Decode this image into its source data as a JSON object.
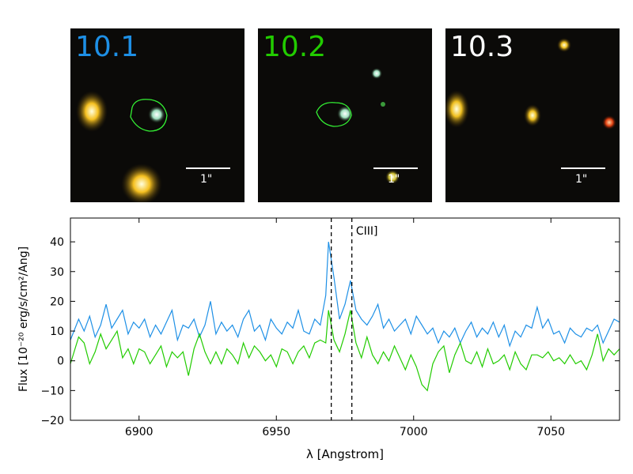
{
  "stamps": [
    {
      "label": "10.1",
      "label_color": "#1e90e6",
      "scale_text": "1\"",
      "has_contour": true
    },
    {
      "label": "10.2",
      "label_color": "#22cc00",
      "scale_text": "1\"",
      "has_contour": true
    },
    {
      "label": "10.3",
      "label_color": "#ffffff",
      "scale_text": "1\"",
      "has_contour": false
    }
  ],
  "chart_data": {
    "type": "line",
    "xlabel": "λ [Angstrom]",
    "ylabel": "Flux [10⁻²⁰ erg/s/cm²/Ang]",
    "xlim": [
      6875,
      7075
    ],
    "ylim": [
      -20,
      48
    ],
    "xticks": [
      6900,
      6950,
      7000,
      7050
    ],
    "yticks": [
      -20,
      -10,
      0,
      10,
      20,
      30,
      40
    ],
    "vlines": [
      6970,
      6977.5
    ],
    "annotation": {
      "text": "CIII]",
      "x": 6979,
      "y": 44
    },
    "colors": {
      "blue": "#1e90e6",
      "green": "#22cc00"
    },
    "series": [
      {
        "color": "#1e90e6",
        "points": [
          [
            6875,
            7
          ],
          [
            6878,
            14
          ],
          [
            6880,
            10
          ],
          [
            6882,
            15
          ],
          [
            6884,
            8
          ],
          [
            6886,
            12
          ],
          [
            6888,
            19
          ],
          [
            6890,
            11
          ],
          [
            6892,
            14
          ],
          [
            6894,
            17
          ],
          [
            6896,
            9
          ],
          [
            6898,
            13
          ],
          [
            6900,
            11
          ],
          [
            6902,
            14
          ],
          [
            6904,
            8
          ],
          [
            6906,
            12
          ],
          [
            6908,
            9
          ],
          [
            6910,
            13
          ],
          [
            6912,
            17
          ],
          [
            6914,
            7
          ],
          [
            6916,
            12
          ],
          [
            6918,
            11
          ],
          [
            6920,
            14
          ],
          [
            6922,
            8
          ],
          [
            6924,
            12
          ],
          [
            6926,
            20
          ],
          [
            6928,
            9
          ],
          [
            6930,
            13
          ],
          [
            6932,
            10
          ],
          [
            6934,
            12
          ],
          [
            6936,
            8
          ],
          [
            6938,
            14
          ],
          [
            6940,
            17
          ],
          [
            6942,
            10
          ],
          [
            6944,
            12
          ],
          [
            6946,
            7
          ],
          [
            6948,
            14
          ],
          [
            6950,
            11
          ],
          [
            6952,
            9
          ],
          [
            6954,
            13
          ],
          [
            6956,
            11
          ],
          [
            6958,
            17
          ],
          [
            6960,
            10
          ],
          [
            6962,
            9
          ],
          [
            6964,
            14
          ],
          [
            6966,
            12
          ],
          [
            6968,
            22
          ],
          [
            6969,
            40
          ],
          [
            6971,
            28
          ],
          [
            6973,
            14
          ],
          [
            6975,
            19
          ],
          [
            6977,
            27
          ],
          [
            6979,
            17
          ],
          [
            6981,
            14
          ],
          [
            6983,
            12
          ],
          [
            6985,
            15
          ],
          [
            6987,
            19
          ],
          [
            6989,
            11
          ],
          [
            6991,
            14
          ],
          [
            6993,
            10
          ],
          [
            6995,
            12
          ],
          [
            6997,
            14
          ],
          [
            6999,
            9
          ],
          [
            7001,
            15
          ],
          [
            7003,
            12
          ],
          [
            7005,
            9
          ],
          [
            7007,
            11
          ],
          [
            7009,
            6
          ],
          [
            7011,
            10
          ],
          [
            7013,
            8
          ],
          [
            7015,
            11
          ],
          [
            7017,
            6
          ],
          [
            7019,
            10
          ],
          [
            7021,
            13
          ],
          [
            7023,
            8
          ],
          [
            7025,
            11
          ],
          [
            7027,
            9
          ],
          [
            7029,
            13
          ],
          [
            7031,
            8
          ],
          [
            7033,
            12
          ],
          [
            7035,
            5
          ],
          [
            7037,
            10
          ],
          [
            7039,
            8
          ],
          [
            7041,
            12
          ],
          [
            7043,
            11
          ],
          [
            7045,
            18
          ],
          [
            7047,
            11
          ],
          [
            7049,
            14
          ],
          [
            7051,
            9
          ],
          [
            7053,
            10
          ],
          [
            7055,
            6
          ],
          [
            7057,
            11
          ],
          [
            7059,
            9
          ],
          [
            7061,
            8
          ],
          [
            7063,
            11
          ],
          [
            7065,
            10
          ],
          [
            7067,
            12
          ],
          [
            7069,
            6
          ],
          [
            7071,
            10
          ],
          [
            7073,
            14
          ],
          [
            7075,
            13
          ]
        ]
      },
      {
        "color": "#22cc00",
        "points": [
          [
            6875,
            -1
          ],
          [
            6878,
            8
          ],
          [
            6880,
            6
          ],
          [
            6882,
            -1
          ],
          [
            6884,
            3
          ],
          [
            6886,
            9
          ],
          [
            6888,
            4
          ],
          [
            6890,
            7
          ],
          [
            6892,
            10
          ],
          [
            6894,
            1
          ],
          [
            6896,
            4
          ],
          [
            6898,
            -1
          ],
          [
            6900,
            4
          ],
          [
            6902,
            3
          ],
          [
            6904,
            -1
          ],
          [
            6906,
            2
          ],
          [
            6908,
            5
          ],
          [
            6910,
            -2
          ],
          [
            6912,
            3
          ],
          [
            6914,
            1
          ],
          [
            6916,
            3
          ],
          [
            6918,
            -5
          ],
          [
            6920,
            4
          ],
          [
            6922,
            9
          ],
          [
            6924,
            3
          ],
          [
            6926,
            -1
          ],
          [
            6928,
            3
          ],
          [
            6930,
            -1
          ],
          [
            6932,
            4
          ],
          [
            6934,
            2
          ],
          [
            6936,
            -1
          ],
          [
            6938,
            6
          ],
          [
            6940,
            1
          ],
          [
            6942,
            5
          ],
          [
            6944,
            3
          ],
          [
            6946,
            0
          ],
          [
            6948,
            2
          ],
          [
            6950,
            -2
          ],
          [
            6952,
            4
          ],
          [
            6954,
            3
          ],
          [
            6956,
            -1
          ],
          [
            6958,
            3
          ],
          [
            6960,
            5
          ],
          [
            6962,
            1
          ],
          [
            6964,
            6
          ],
          [
            6966,
            7
          ],
          [
            6968,
            6
          ],
          [
            6969,
            17
          ],
          [
            6971,
            7
          ],
          [
            6973,
            3
          ],
          [
            6975,
            9
          ],
          [
            6977,
            17
          ],
          [
            6979,
            6
          ],
          [
            6981,
            1
          ],
          [
            6983,
            8
          ],
          [
            6985,
            2
          ],
          [
            6987,
            -1
          ],
          [
            6989,
            3
          ],
          [
            6991,
            0
          ],
          [
            6993,
            5
          ],
          [
            6995,
            1
          ],
          [
            6997,
            -3
          ],
          [
            6999,
            2
          ],
          [
            7001,
            -2
          ],
          [
            7003,
            -8
          ],
          [
            7005,
            -10
          ],
          [
            7007,
            -1
          ],
          [
            7009,
            3
          ],
          [
            7011,
            5
          ],
          [
            7013,
            -4
          ],
          [
            7015,
            2
          ],
          [
            7017,
            6
          ],
          [
            7019,
            0
          ],
          [
            7021,
            -1
          ],
          [
            7023,
            3
          ],
          [
            7025,
            -2
          ],
          [
            7027,
            4
          ],
          [
            7029,
            -1
          ],
          [
            7031,
            0
          ],
          [
            7033,
            2
          ],
          [
            7035,
            -3
          ],
          [
            7037,
            3
          ],
          [
            7039,
            -1
          ],
          [
            7041,
            -3
          ],
          [
            7043,
            2
          ],
          [
            7045,
            2
          ],
          [
            7047,
            1
          ],
          [
            7049,
            3
          ],
          [
            7051,
            0
          ],
          [
            7053,
            1
          ],
          [
            7055,
            -1
          ],
          [
            7057,
            2
          ],
          [
            7059,
            -1
          ],
          [
            7061,
            0
          ],
          [
            7063,
            -3
          ],
          [
            7065,
            2
          ],
          [
            7067,
            9
          ],
          [
            7069,
            0
          ],
          [
            7071,
            4
          ],
          [
            7073,
            2
          ],
          [
            7075,
            4
          ]
        ]
      }
    ]
  }
}
